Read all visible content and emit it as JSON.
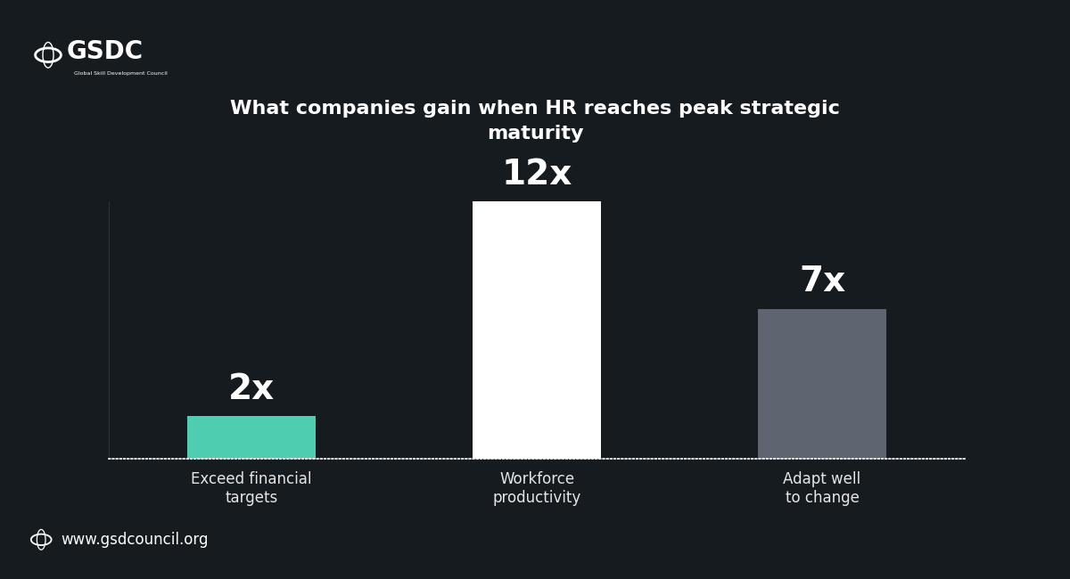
{
  "chart_data": {
    "type": "bar",
    "title": "What companies gain when HR reaches peak strategic\nmaturity",
    "categories": [
      "Exceed financial\ntargets",
      "Workforce\nproductivity",
      "Adapt well\nto change"
    ],
    "values": [
      2,
      12,
      7
    ],
    "value_labels": [
      "2x",
      "12x",
      "7x"
    ],
    "data_labels": true,
    "colors": [
      "#4ecdb0",
      "#ffffff",
      "#5e6470"
    ],
    "ylim": [
      0,
      12
    ],
    "yticks": [
      0,
      12
    ],
    "tick_labels": "x",
    "grid": false,
    "annotations": [
      "GSDC",
      "Global Skill Development Council",
      "www.gsdcouncil.org"
    ]
  }
}
